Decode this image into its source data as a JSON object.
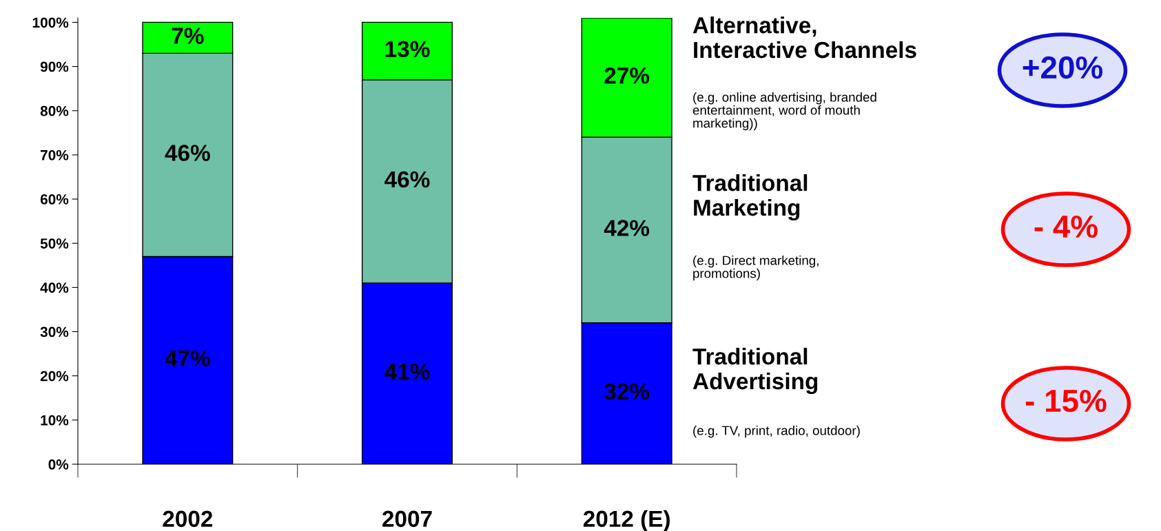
{
  "chart_data": {
    "type": "bar",
    "stacked": true,
    "categories": [
      "2002",
      "2007",
      "2012 (E)"
    ],
    "series": [
      {
        "name": "Traditional Advertising",
        "color": "#0000ff",
        "values": [
          47,
          41,
          32
        ],
        "value_labels": [
          "47%",
          "41%",
          "32%"
        ]
      },
      {
        "name": "Traditional Marketing",
        "color": "#70c0a8",
        "values": [
          46,
          46,
          42
        ],
        "value_labels": [
          "46%",
          "46%",
          "42%"
        ]
      },
      {
        "name": "Alternative, Interactive Channels",
        "color": "#00ff00",
        "values": [
          7,
          13,
          27
        ],
        "value_labels": [
          "7%",
          "13%",
          "27%"
        ]
      }
    ],
    "ylim": [
      0,
      101
    ],
    "yticks": [
      {
        "value": 0,
        "label": "0%"
      },
      {
        "value": 10,
        "label": "10%"
      },
      {
        "value": 20,
        "label": "20%"
      },
      {
        "value": 30,
        "label": "30%"
      },
      {
        "value": 40,
        "label": "40%"
      },
      {
        "value": 50,
        "label": "50%"
      },
      {
        "value": 60,
        "label": "60%"
      },
      {
        "value": 70,
        "label": "70%"
      },
      {
        "value": 80,
        "label": "80%"
      },
      {
        "value": 90,
        "label": "90%"
      },
      {
        "value": 100,
        "label": "100%"
      }
    ],
    "annotations": [
      "(e.g. TV, print, radio, outdoor)",
      "(e.g. Direct marketing,\npromotions)",
      "(e.g. online advertising, branded\nentertainment, word of mouth\nmarketing))",
      "- 15%",
      "- 4%",
      "+20%"
    ],
    "grid": false,
    "legend": false
  }
}
